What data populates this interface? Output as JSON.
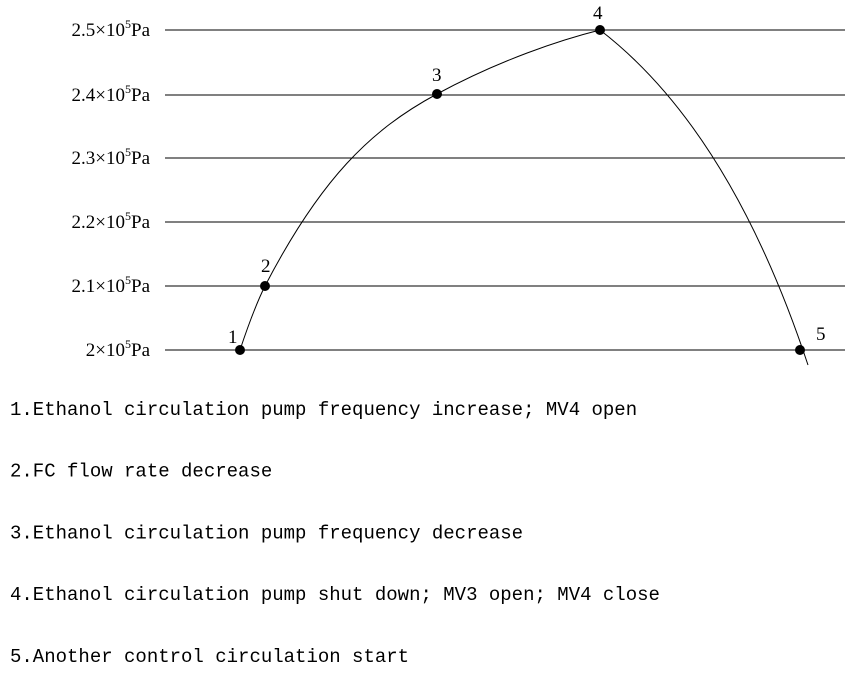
{
  "levels": [
    {
      "base": "2.5×10",
      "exp": "5",
      "unit": "Pa"
    },
    {
      "base": "2.4×10",
      "exp": "5",
      "unit": "Pa"
    },
    {
      "base": "2.3×10",
      "exp": "5",
      "unit": "Pa"
    },
    {
      "base": "2.2×10",
      "exp": "5",
      "unit": "Pa"
    },
    {
      "base": "2.1×10",
      "exp": "5",
      "unit": "Pa"
    },
    {
      "base": "2×10",
      "exp": "5",
      "unit": "Pa"
    }
  ],
  "points": [
    "1",
    "2",
    "3",
    "4",
    "5"
  ],
  "notes": [
    "1.Ethanol circulation pump frequency increase; MV4 open",
    "2.FC flow rate decrease",
    "3.Ethanol circulation pump frequency decrease",
    "4.Ethanol circulation pump shut down; MV3 open; MV4 close",
    "5.Another control circulation start"
  ]
}
